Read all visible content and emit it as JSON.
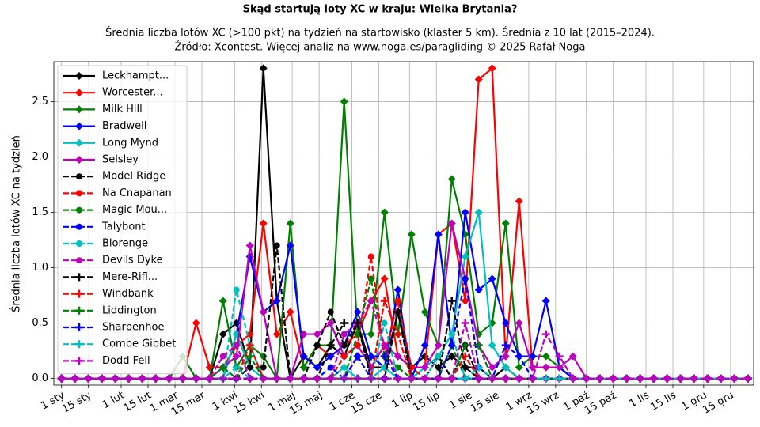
{
  "chart_data": {
    "type": "line",
    "title": "Skąd startują loty XC w kraju: Wielka Brytania?",
    "subtitle": [
      "Średnia liczba lotów XC (>100 pkt) na tydzień na startowisko (klaster 5 km). Średnia z 10 lat (2015–2024).",
      "Źródło: Xcontest. Więcej analiz na www.noga.es/paragliding © 2025 Rafał Noga"
    ],
    "y_label": "Średnia liczba lotów XC na tydzień",
    "grid": true,
    "legend": "upper left",
    "x": [
      0,
      7,
      14,
      21,
      28,
      35,
      42,
      49,
      56,
      63,
      70,
      77,
      84,
      91,
      98,
      105,
      112,
      119,
      126,
      133,
      140,
      147,
      154,
      161,
      168,
      175,
      182,
      189,
      196,
      203,
      210,
      217,
      224,
      231,
      238,
      245,
      252,
      259,
      266,
      273,
      280,
      287,
      294,
      301,
      308,
      315,
      322,
      329,
      336,
      343,
      350,
      357
    ],
    "xlim": [
      -4,
      360
    ],
    "xticks": [
      {
        "value": 0,
        "label": "1 sty"
      },
      {
        "value": 14,
        "label": "15 sty"
      },
      {
        "value": 31,
        "label": "1 lut"
      },
      {
        "value": 45,
        "label": "15 lut"
      },
      {
        "value": 59,
        "label": "1 mar"
      },
      {
        "value": 73,
        "label": "15 mar"
      },
      {
        "value": 90,
        "label": "1 kwi"
      },
      {
        "value": 104,
        "label": "15 kwi"
      },
      {
        "value": 120,
        "label": "1 maj"
      },
      {
        "value": 134,
        "label": "15 maj"
      },
      {
        "value": 151,
        "label": "1 cze"
      },
      {
        "value": 165,
        "label": "15 cze"
      },
      {
        "value": 181,
        "label": "1 lip"
      },
      {
        "value": 195,
        "label": "15 lip"
      },
      {
        "value": 212,
        "label": "1 sie"
      },
      {
        "value": 226,
        "label": "15 sie"
      },
      {
        "value": 243,
        "label": "1 wrz"
      },
      {
        "value": 257,
        "label": "15 wrz"
      },
      {
        "value": 273,
        "label": "1 paź"
      },
      {
        "value": 287,
        "label": "15 paź"
      },
      {
        "value": 304,
        "label": "1 lis"
      },
      {
        "value": 318,
        "label": "15 lis"
      },
      {
        "value": 334,
        "label": "1 gru"
      },
      {
        "value": 348,
        "label": "15 gru"
      }
    ],
    "ylim": [
      -0.06,
      2.86
    ],
    "yticks": [
      {
        "value": 0,
        "label": "0.0"
      },
      0.5,
      {
        "value": 1,
        "label": "1.0"
      },
      1.5,
      {
        "value": 2,
        "label": "2.0"
      },
      2.5
    ],
    "series": [
      {
        "name": "Leckhampt...",
        "color": "#000000",
        "linestyle": "solid",
        "marker": "diamond",
        "values": [
          0,
          0,
          0,
          0,
          0,
          0,
          0,
          0,
          0,
          0,
          0,
          0,
          0.4,
          0.5,
          0.1,
          2.8,
          0.7,
          0,
          0.2,
          0.1,
          0.3,
          0.2,
          0.5,
          0.1,
          0.1,
          0.6,
          0.1,
          0.2,
          0.1,
          0.2,
          0.1,
          0.1,
          0,
          0.1,
          0,
          0,
          0,
          0,
          0,
          0,
          0,
          0,
          0,
          0,
          0,
          0,
          0,
          0,
          0,
          0,
          0,
          0
        ]
      },
      {
        "name": "Worcester...",
        "color": "#ff0000",
        "linestyle": "solid",
        "marker": "diamond",
        "values": [
          0,
          0,
          0,
          0,
          0,
          0,
          0,
          0,
          0,
          0,
          0.5,
          0.1,
          0.1,
          0.3,
          0.4,
          1.4,
          0.4,
          0.6,
          0.1,
          0.3,
          0.2,
          0.3,
          0.4,
          0.7,
          0.9,
          0.2,
          0.1,
          0.1,
          1.3,
          1.4,
          0.7,
          2.7,
          2.8,
          0.2,
          1.6,
          0.1,
          0.1,
          0.1,
          0,
          0,
          0,
          0,
          0,
          0,
          0,
          0,
          0,
          0,
          0,
          0,
          0,
          0
        ]
      },
      {
        "name": "Milk Hill",
        "color": "#008000",
        "linestyle": "solid",
        "marker": "diamond",
        "values": [
          0,
          0,
          0,
          0,
          0,
          0,
          0,
          0,
          0,
          0.2,
          0,
          0,
          0.7,
          0.1,
          0.3,
          0.2,
          0,
          1.4,
          0.1,
          0.3,
          0.3,
          2.5,
          0.4,
          0.4,
          1.5,
          0.4,
          1.3,
          0.6,
          0.3,
          1.8,
          1.3,
          0.4,
          0.5,
          1.4,
          0.1,
          0.2,
          0.2,
          0.1,
          0,
          0,
          0,
          0,
          0,
          0,
          0,
          0,
          0,
          0,
          0,
          0,
          0,
          0
        ]
      },
      {
        "name": "Bradwell",
        "color": "#0000ff",
        "linestyle": "solid",
        "marker": "diamond",
        "values": [
          0,
          0,
          0,
          0,
          0,
          0,
          0,
          0,
          0,
          0,
          0,
          0,
          0,
          0.4,
          1.1,
          0.6,
          0.7,
          1.2,
          0.2,
          0.1,
          0.2,
          0.3,
          0.6,
          0.2,
          0.1,
          0.8,
          0,
          0.3,
          1.3,
          0.3,
          1.5,
          0.8,
          0.9,
          0.5,
          0.2,
          0.2,
          0.7,
          0.1,
          0,
          0,
          0,
          0,
          0,
          0,
          0,
          0,
          0,
          0,
          0,
          0,
          0,
          0
        ]
      },
      {
        "name": "Long Mynd",
        "color": "#00bfbf",
        "linestyle": "solid",
        "marker": "diamond",
        "values": [
          0,
          0,
          0,
          0,
          0,
          0,
          0,
          0,
          0,
          0,
          0,
          0,
          0,
          0.4,
          0.1,
          0,
          0,
          0,
          0,
          0,
          0,
          0.1,
          0,
          0,
          0.1,
          0,
          0,
          0.1,
          0.2,
          0.4,
          1.1,
          1.5,
          0.3,
          0.1,
          0,
          0,
          0,
          0,
          0,
          0,
          0,
          0,
          0,
          0,
          0,
          0,
          0,
          0,
          0,
          0,
          0,
          0
        ]
      },
      {
        "name": "Selsley",
        "color": "#bf00bf",
        "linestyle": "solid",
        "marker": "diamond",
        "values": [
          0,
          0,
          0,
          0,
          0,
          0,
          0,
          0,
          0,
          0,
          0,
          0,
          0.1,
          0.2,
          1.2,
          0.6,
          0,
          0,
          0.4,
          0.4,
          0.5,
          0.2,
          0.3,
          0.1,
          0.3,
          0.2,
          0.1,
          0.1,
          0.3,
          1.4,
          0.9,
          0.3,
          0.1,
          0.2,
          0.5,
          0.1,
          0.1,
          0.1,
          0.2,
          0,
          0,
          0,
          0,
          0,
          0,
          0,
          0,
          0,
          0,
          0,
          0,
          0
        ]
      },
      {
        "name": "Model Ridge",
        "color": "#000000",
        "linestyle": "dashed",
        "marker": "circle",
        "values": [
          0,
          0,
          0,
          0,
          0,
          0,
          0,
          0,
          0,
          0,
          0,
          0,
          0,
          0,
          0.1,
          0.1,
          1.2,
          0,
          0,
          0.3,
          0.6,
          0.3,
          0.5,
          0,
          0,
          0.6,
          0,
          0,
          0.2,
          0,
          0.3,
          0,
          0,
          0,
          0,
          0,
          0,
          0,
          0,
          0,
          0,
          0,
          0,
          0,
          0,
          0,
          0,
          0,
          0,
          0,
          0,
          0
        ]
      },
      {
        "name": "Na Cnapanan",
        "color": "#ff0000",
        "linestyle": "dashed",
        "marker": "circle",
        "values": [
          0,
          0,
          0,
          0,
          0,
          0,
          0,
          0,
          0,
          0,
          0,
          0,
          0,
          0,
          0,
          0,
          0,
          0,
          0,
          0,
          0,
          0.2,
          0.3,
          1.1,
          0.2,
          0.7,
          0.1,
          0,
          0,
          0,
          0,
          0,
          0,
          0,
          0,
          0,
          0,
          0,
          0,
          0,
          0,
          0,
          0,
          0,
          0,
          0,
          0,
          0,
          0,
          0,
          0,
          0
        ]
      },
      {
        "name": "Magic Mou...",
        "color": "#008000",
        "linestyle": "dashed",
        "marker": "circle",
        "values": [
          0,
          0,
          0,
          0,
          0,
          0,
          0,
          0,
          0,
          0,
          0,
          0,
          0,
          0,
          0,
          0,
          0,
          0,
          0,
          0,
          0,
          0,
          0.4,
          0.9,
          0.2,
          0.1,
          0,
          0,
          0,
          0.3,
          0,
          0,
          0,
          0,
          0,
          0,
          0,
          0,
          0,
          0,
          0,
          0,
          0,
          0,
          0,
          0,
          0,
          0,
          0,
          0,
          0,
          0
        ]
      },
      {
        "name": "Talybont",
        "color": "#0000ff",
        "linestyle": "dashed",
        "marker": "circle",
        "values": [
          0,
          0,
          0,
          0,
          0,
          0,
          0,
          0,
          0,
          0,
          0,
          0,
          0,
          0,
          0,
          0,
          0,
          0,
          0,
          0,
          0.1,
          0,
          0.2,
          0,
          0,
          0,
          0,
          0,
          0,
          0.3,
          0.9,
          0.1,
          0,
          0,
          0,
          0,
          0,
          0,
          0,
          0,
          0,
          0,
          0,
          0,
          0,
          0,
          0,
          0,
          0,
          0,
          0,
          0
        ]
      },
      {
        "name": "Blorenge",
        "color": "#00bfbf",
        "linestyle": "dashed",
        "marker": "circle",
        "values": [
          0,
          0,
          0,
          0,
          0,
          0,
          0,
          0,
          0,
          0,
          0,
          0,
          0,
          0.8,
          0.3,
          0,
          0,
          0,
          0,
          0,
          0,
          0,
          0,
          0,
          0.5,
          0,
          0,
          0,
          0.2,
          0.4,
          0,
          0,
          0,
          0,
          0,
          0,
          0,
          0,
          0,
          0,
          0,
          0,
          0,
          0,
          0,
          0,
          0,
          0,
          0,
          0,
          0,
          0
        ]
      },
      {
        "name": "Devils Dyke",
        "color": "#bf00bf",
        "linestyle": "dashed",
        "marker": "circle",
        "values": [
          0,
          0,
          0,
          0,
          0,
          0,
          0,
          0,
          0,
          0,
          0,
          0,
          0.2,
          0.3,
          0,
          0,
          0,
          0,
          0,
          0,
          0,
          0.4,
          0.5,
          0.7,
          0.3,
          0,
          0,
          0,
          0,
          0,
          0,
          0,
          0,
          0,
          0,
          0,
          0,
          0,
          0,
          0,
          0,
          0,
          0,
          0,
          0,
          0,
          0,
          0,
          0,
          0,
          0,
          0
        ]
      },
      {
        "name": "Mere-Rifl...",
        "color": "#000000",
        "linestyle": "dashed",
        "marker": "plus",
        "values": [
          0,
          0,
          0,
          0,
          0,
          0,
          0,
          0,
          0,
          0,
          0,
          0,
          0,
          0,
          0,
          0,
          0,
          0,
          0,
          0,
          0.3,
          0.5,
          0.5,
          0,
          0,
          0.6,
          0,
          0,
          0,
          0.7,
          0.1,
          0,
          0,
          0,
          0,
          0,
          0,
          0,
          0,
          0,
          0,
          0,
          0,
          0,
          0,
          0,
          0,
          0,
          0,
          0,
          0,
          0
        ]
      },
      {
        "name": "Windbank",
        "color": "#ff0000",
        "linestyle": "dashed",
        "marker": "plus",
        "values": [
          0,
          0,
          0,
          0,
          0,
          0,
          0,
          0,
          0,
          0,
          0,
          0,
          0,
          0,
          0.3,
          0,
          0,
          0,
          0,
          0,
          0,
          0,
          0,
          0,
          0.7,
          0.4,
          0,
          0,
          0,
          0,
          0.2,
          0,
          0,
          0,
          0,
          0,
          0,
          0,
          0,
          0,
          0,
          0,
          0,
          0,
          0,
          0,
          0,
          0,
          0,
          0,
          0,
          0
        ]
      },
      {
        "name": "Liddington",
        "color": "#008000",
        "linestyle": "dashed",
        "marker": "plus",
        "values": [
          0,
          0,
          0,
          0,
          0,
          0,
          0,
          0,
          0,
          0,
          0,
          0,
          0.1,
          0,
          0.2,
          0,
          0,
          0,
          0,
          0,
          0,
          0,
          0,
          0,
          0,
          0,
          0,
          0,
          0,
          0,
          0.3,
          0.3,
          0,
          0,
          0,
          0,
          0,
          0,
          0,
          0,
          0,
          0,
          0,
          0,
          0,
          0,
          0,
          0,
          0,
          0,
          0,
          0
        ]
      },
      {
        "name": "Sharpenhoe",
        "color": "#0000ff",
        "linestyle": "dashed",
        "marker": "plus",
        "values": [
          0,
          0,
          0,
          0,
          0,
          0,
          0,
          0,
          0,
          0,
          0,
          0,
          0,
          0,
          0,
          0,
          0,
          0,
          0,
          0,
          0,
          0,
          0.2,
          0.2,
          0.2,
          0,
          0,
          0,
          0,
          0,
          0,
          0,
          0,
          0.3,
          0.2,
          0,
          0,
          0,
          0,
          0,
          0,
          0,
          0,
          0,
          0,
          0,
          0,
          0,
          0,
          0,
          0,
          0
        ]
      },
      {
        "name": "Combe Gibbet",
        "color": "#00bfbf",
        "linestyle": "dashed",
        "marker": "plus",
        "values": [
          0,
          0,
          0,
          0,
          0,
          0,
          0,
          0,
          0,
          0,
          0,
          0,
          0,
          0.1,
          0,
          0,
          0,
          0,
          0,
          0,
          0,
          0,
          0,
          0,
          0,
          0,
          0,
          0,
          0,
          0,
          0,
          0.1,
          0,
          0,
          0,
          0,
          0,
          0,
          0,
          0,
          0,
          0,
          0,
          0,
          0,
          0,
          0,
          0,
          0,
          0,
          0,
          0
        ]
      },
      {
        "name": "Dodd Fell",
        "color": "#bf00bf",
        "linestyle": "dashed",
        "marker": "plus",
        "values": [
          0,
          0,
          0,
          0,
          0,
          0,
          0,
          0,
          0,
          0,
          0,
          0,
          0,
          0,
          0,
          0,
          0,
          0,
          0,
          0,
          0,
          0,
          0,
          0,
          0,
          0,
          0,
          0,
          0,
          0,
          0.5,
          0,
          0,
          0,
          0,
          0,
          0.4,
          0.2,
          0,
          0,
          0,
          0,
          0,
          0,
          0,
          0,
          0,
          0,
          0,
          0,
          0,
          0
        ]
      }
    ]
  }
}
